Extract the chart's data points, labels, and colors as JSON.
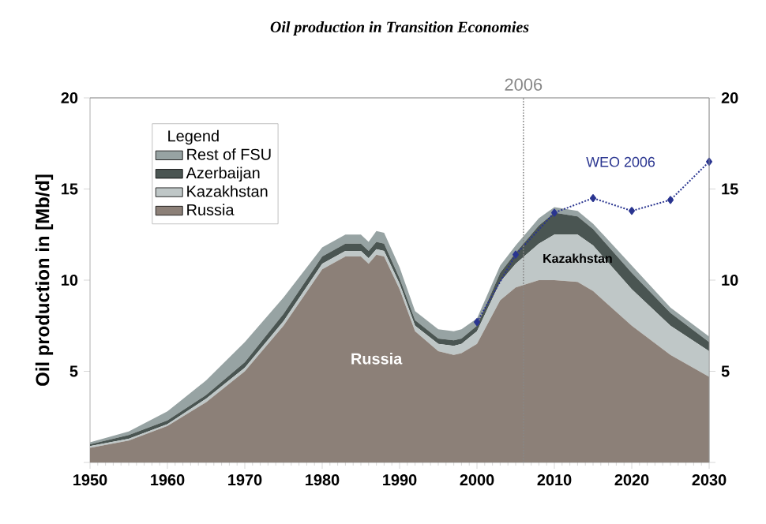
{
  "chart_data": {
    "type": "area",
    "title": "Oil production in Transition Economies",
    "ylabel": "Oil production in [Mb/d]",
    "legend_title": "Legend",
    "stacked": true,
    "legend": "top left",
    "x": [
      1950,
      1955,
      1960,
      1965,
      1970,
      1975,
      1980,
      1983,
      1985,
      1986,
      1987,
      1988,
      1990,
      1992,
      1995,
      1997,
      1998,
      2000,
      2003,
      2005,
      2008,
      2010,
      2013,
      2015,
      2020,
      2025,
      2030
    ],
    "series": [
      {
        "name": "Russia",
        "color": "#8c8078",
        "values": [
          0.8,
          1.2,
          2.0,
          3.3,
          5.0,
          7.5,
          10.6,
          11.3,
          11.3,
          10.9,
          11.4,
          11.3,
          9.5,
          7.2,
          6.1,
          5.9,
          6.0,
          6.5,
          8.9,
          9.6,
          10.0,
          10.0,
          9.9,
          9.4,
          7.5,
          5.9,
          4.7
        ]
      },
      {
        "name": "Kazakhstan",
        "color": "#bfc7c7",
        "values": [
          0.1,
          0.1,
          0.1,
          0.2,
          0.2,
          0.25,
          0.3,
          0.3,
          0.3,
          0.3,
          0.3,
          0.3,
          0.3,
          0.3,
          0.4,
          0.5,
          0.5,
          0.7,
          1.0,
          1.3,
          2.0,
          2.5,
          2.6,
          2.5,
          2.0,
          1.6,
          1.4
        ]
      },
      {
        "name": "Azerbaijan",
        "color": "#4a5552",
        "values": [
          0.1,
          0.2,
          0.2,
          0.2,
          0.3,
          0.4,
          0.4,
          0.4,
          0.4,
          0.4,
          0.4,
          0.4,
          0.3,
          0.3,
          0.3,
          0.3,
          0.3,
          0.3,
          0.5,
          0.6,
          1.0,
          1.2,
          1.0,
          0.9,
          0.9,
          0.7,
          0.5
        ]
      },
      {
        "name": "Rest of FSU",
        "color": "#97a3a3",
        "values": [
          0.1,
          0.2,
          0.5,
          0.8,
          1.1,
          0.9,
          0.5,
          0.5,
          0.5,
          0.5,
          0.6,
          0.6,
          0.6,
          0.5,
          0.5,
          0.5,
          0.5,
          0.4,
          0.4,
          0.4,
          0.4,
          0.3,
          0.3,
          0.3,
          0.4,
          0.3,
          0.3
        ]
      },
      {
        "name": "WEO 2006",
        "type": "line",
        "color": "#2a3590",
        "marker": "diamond",
        "line_style": "dotted",
        "x": [
          2000,
          2005,
          2010,
          2015,
          2020,
          2025,
          2030
        ],
        "values": [
          7.7,
          11.4,
          13.7,
          14.5,
          13.8,
          14.4,
          16.5
        ]
      }
    ],
    "xlim": [
      1950,
      2030
    ],
    "xticks": [
      1950,
      1960,
      1970,
      1980,
      1990,
      2000,
      2010,
      2020,
      2030
    ],
    "ylim": [
      0,
      20
    ],
    "yticks": [
      {
        "value": 0,
        "label": null
      },
      5,
      10,
      15,
      20
    ],
    "y2lim": [
      0,
      20
    ],
    "y2ticks": [
      {
        "value": 0,
        "label": null
      },
      5,
      10,
      15,
      20
    ],
    "ref_lines": [
      {
        "axis": "x",
        "value": 2006,
        "label": "2006",
        "color": "#888888",
        "line_style": "dotted"
      }
    ],
    "annotations": [
      "Russia",
      "Kazakhstan"
    ]
  }
}
